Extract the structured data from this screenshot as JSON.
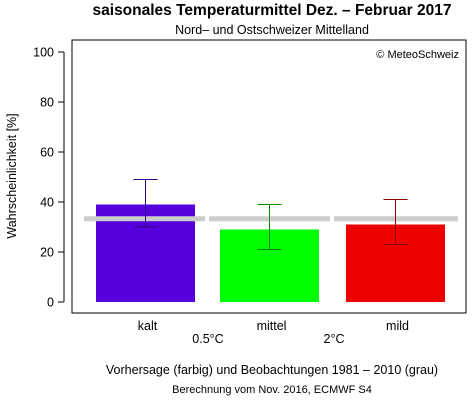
{
  "chart_data": {
    "type": "bar",
    "title": "saisonales Temperaturmittel Dez. – Februar 2017",
    "subtitle": "Nord– und Ostschweizer Mittelland",
    "copyright": "© MeteoSchweiz",
    "ylabel": "Wahrscheinlichkeit [%]",
    "ylim": [
      0,
      100
    ],
    "yticks": [
      0,
      20,
      40,
      60,
      80,
      100
    ],
    "categories": [
      "kalt",
      "mittel",
      "mild"
    ],
    "thresholds": [
      "0.5°C",
      "2°C"
    ],
    "values": [
      39,
      29,
      31
    ],
    "error_low": [
      30,
      21,
      23
    ],
    "error_high": [
      49,
      39,
      41
    ],
    "climatology": 33.3,
    "colors": [
      "#5500dd",
      "#00ff00",
      "#ee0000"
    ],
    "error_colors": [
      "#330088",
      "#008800",
      "#880000"
    ],
    "climatology_color": "#cccccc",
    "footer": "Vorhersage (farbig) und Beobachtungen 1981 – 2010 (grau)",
    "footer2": "Berechnung vom Nov. 2016, ECMWF S4"
  }
}
